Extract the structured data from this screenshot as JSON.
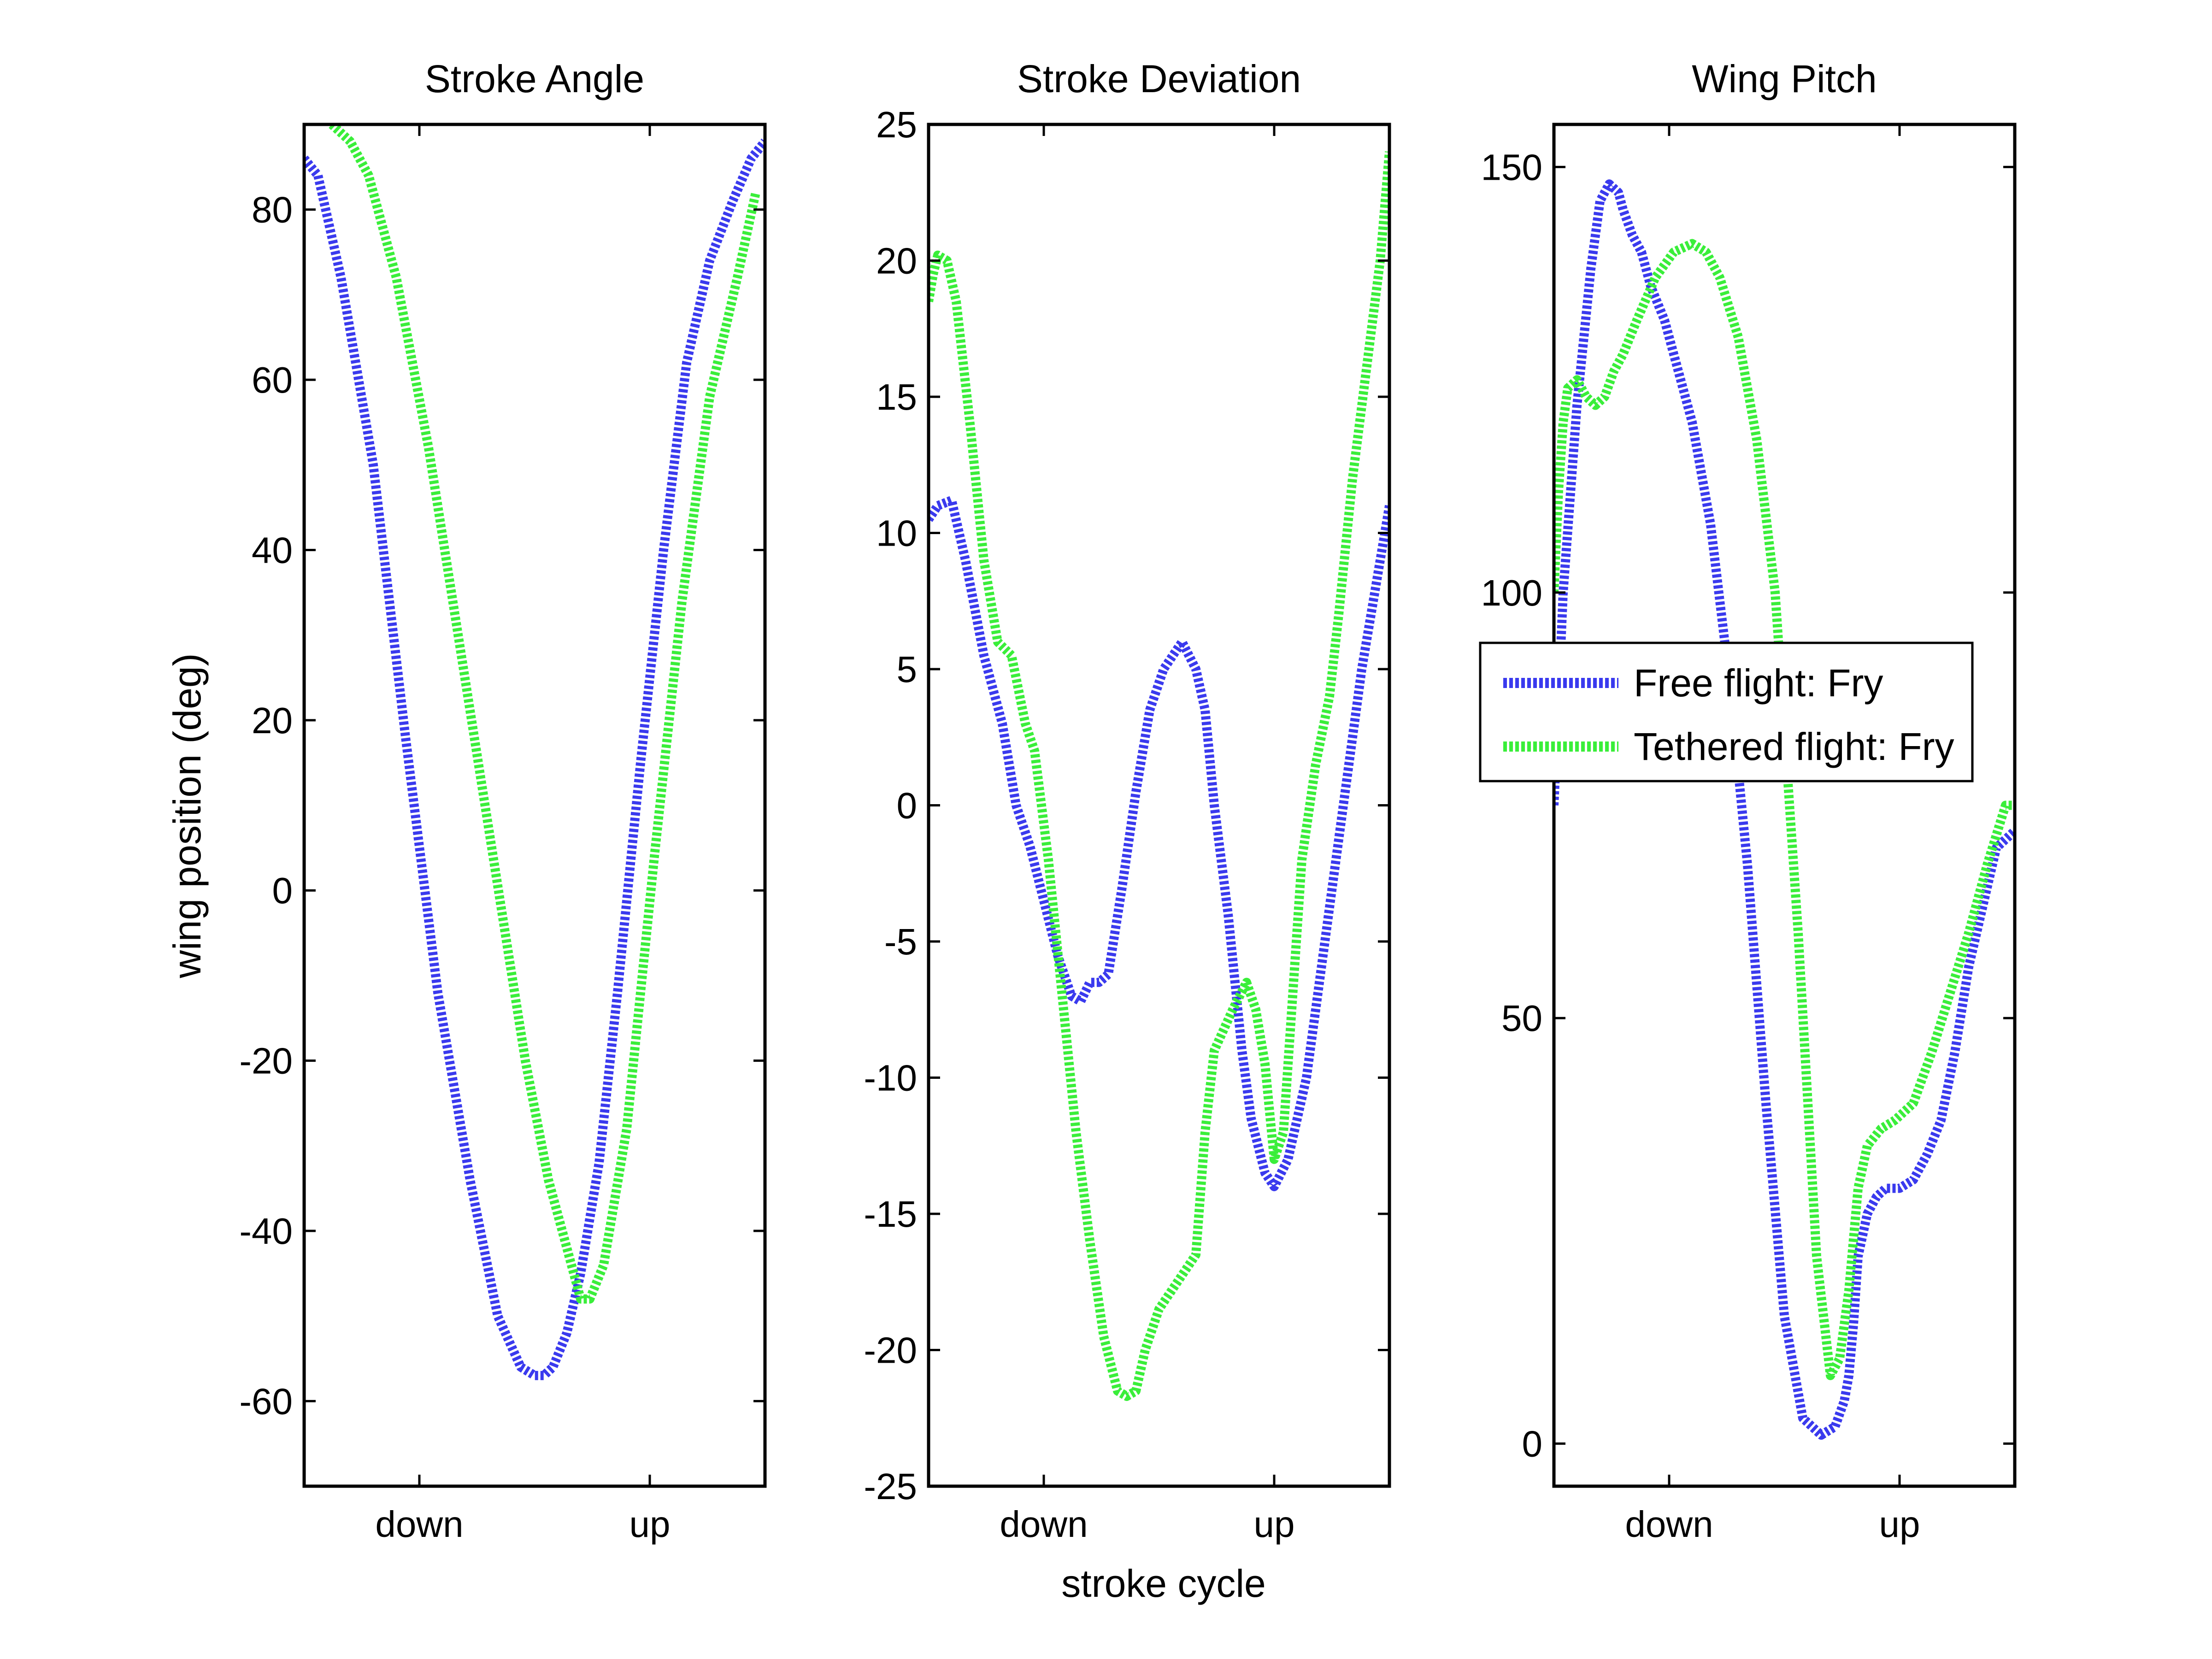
{
  "figure": {
    "ylabel": "wing position (deg)",
    "xlabel": "stroke cycle"
  },
  "legend": {
    "entries": [
      {
        "label": "Free flight: Fry",
        "color": "#3a3aee"
      },
      {
        "label": "Tethered flight: Fry",
        "color": "#3aee3a"
      }
    ],
    "placement": "over right panel, middle"
  },
  "chart_data": [
    {
      "type": "line",
      "title": "Stroke Angle",
      "xlim": [
        0,
        1
      ],
      "ylim": [
        -70,
        90
      ],
      "yticks": [
        "-60",
        "-40",
        "-20",
        "0",
        "20",
        "40",
        "60",
        "80"
      ],
      "ytick_values": [
        -60,
        -40,
        -20,
        0,
        20,
        40,
        60,
        80
      ],
      "xticks": [
        "down",
        "up"
      ],
      "xtick_values": [
        0.25,
        0.75
      ],
      "series": [
        {
          "name": "Free flight: Fry",
          "color": "#3a3aee",
          "x": [
            0,
            0.03,
            0.08,
            0.15,
            0.22,
            0.29,
            0.36,
            0.42,
            0.47,
            0.5,
            0.52,
            0.54,
            0.57,
            0.6,
            0.64,
            0.68,
            0.73,
            0.78,
            0.83,
            0.88,
            0.93,
            0.97,
            1.0
          ],
          "y": [
            86,
            84,
            72,
            50,
            18,
            -12,
            -34,
            -50,
            -56,
            -57,
            -57,
            -56,
            -52,
            -45,
            -32,
            -12,
            15,
            40,
            62,
            74,
            81,
            86,
            88
          ]
        },
        {
          "name": "Tethered flight: Fry",
          "color": "#3aee3a",
          "x": [
            0.06,
            0.1,
            0.14,
            0.2,
            0.27,
            0.34,
            0.41,
            0.48,
            0.53,
            0.58,
            0.6,
            0.62,
            0.65,
            0.7,
            0.76,
            0.82,
            0.88,
            0.94,
            0.98
          ],
          "y": [
            90,
            88,
            84,
            72,
            52,
            28,
            4,
            -20,
            -34,
            -44,
            -48,
            -48,
            -44,
            -28,
            4,
            34,
            58,
            72,
            82
          ]
        }
      ]
    },
    {
      "type": "line",
      "title": "Stroke Deviation",
      "xlim": [
        0,
        1
      ],
      "ylim": [
        -25,
        25
      ],
      "yticks": [
        "-25",
        "-20",
        "-15",
        "-10",
        "-5",
        "0",
        "5",
        "10",
        "15",
        "20",
        "25"
      ],
      "ytick_values": [
        -25,
        -20,
        -15,
        -10,
        -5,
        0,
        5,
        10,
        15,
        20,
        25
      ],
      "xticks": [
        "down",
        "up"
      ],
      "xtick_values": [
        0.25,
        0.75
      ],
      "series": [
        {
          "name": "Free flight: Fry",
          "color": "#3a3aee",
          "x": [
            0,
            0.02,
            0.05,
            0.08,
            0.12,
            0.16,
            0.19,
            0.22,
            0.25,
            0.28,
            0.31,
            0.33,
            0.35,
            0.37,
            0.39,
            0.42,
            0.45,
            0.48,
            0.51,
            0.55,
            0.58,
            0.6,
            0.62,
            0.65,
            0.68,
            0.7,
            0.73,
            0.75,
            0.78,
            0.82,
            0.86,
            0.9,
            0.94,
            0.98,
            1.0
          ],
          "y": [
            10.5,
            11,
            11.2,
            9,
            5.5,
            3,
            0,
            -1.5,
            -3.5,
            -5.5,
            -7,
            -7.2,
            -6.5,
            -6.5,
            -6.2,
            -3,
            0.5,
            3.5,
            5,
            6,
            5,
            3.5,
            0,
            -4,
            -9,
            -11.5,
            -13.5,
            -14,
            -13,
            -10,
            -5,
            0,
            5,
            9,
            11
          ]
        },
        {
          "name": "Tethered flight: Fry",
          "color": "#3aee3a",
          "x": [
            0,
            0.01,
            0.02,
            0.04,
            0.06,
            0.09,
            0.12,
            0.15,
            0.18,
            0.21,
            0.23,
            0.26,
            0.29,
            0.32,
            0.35,
            0.38,
            0.41,
            0.43,
            0.45,
            0.47,
            0.5,
            0.54,
            0.58,
            0.6,
            0.62,
            0.66,
            0.69,
            0.71,
            0.73,
            0.75,
            0.77,
            0.79,
            0.81,
            0.84,
            0.87,
            0.89,
            0.92,
            0.95,
            0.98,
            1.0
          ],
          "y": [
            18.5,
            19.5,
            20.2,
            20,
            18.5,
            14,
            9,
            6,
            5.5,
            3,
            2,
            -2,
            -7,
            -12,
            -16,
            -19.5,
            -21.5,
            -21.7,
            -21.5,
            -20,
            -18.5,
            -17.5,
            -16.5,
            -12,
            -9,
            -7.5,
            -6.5,
            -7.5,
            -9.5,
            -13,
            -12,
            -7,
            -2,
            1.5,
            4,
            7,
            12,
            16,
            20,
            24
          ]
        }
      ]
    },
    {
      "type": "line",
      "title": "Wing Pitch",
      "xlim": [
        0,
        1
      ],
      "ylim": [
        -5,
        155
      ],
      "yticks": [
        "0",
        "50",
        "100",
        "150"
      ],
      "ytick_values": [
        0,
        50,
        100,
        150
      ],
      "xticks": [
        "down",
        "up"
      ],
      "xtick_values": [
        0.25,
        0.75
      ],
      "series": [
        {
          "name": "Free flight: Fry",
          "color": "#3a3aee",
          "x": [
            0,
            0.02,
            0.05,
            0.08,
            0.1,
            0.12,
            0.14,
            0.15,
            0.17,
            0.19,
            0.21,
            0.24,
            0.27,
            0.3,
            0.34,
            0.38,
            0.42,
            0.46,
            0.5,
            0.54,
            0.58,
            0.61,
            0.63,
            0.64,
            0.65,
            0.66,
            0.68,
            0.7,
            0.72,
            0.75,
            0.78,
            0.81,
            0.84,
            0.87,
            0.9,
            0.93,
            0.96,
            1.0
          ],
          "y": [
            75,
            100,
            122,
            138,
            146,
            148,
            147,
            145,
            142,
            140,
            136,
            132,
            126,
            120,
            108,
            90,
            68,
            40,
            15,
            3,
            1,
            2,
            5,
            8,
            14,
            22,
            27,
            29,
            30,
            30,
            31,
            34,
            38,
            46,
            56,
            63,
            70,
            72
          ]
        },
        {
          "name": "Tethered flight: Fry",
          "color": "#3aee3a",
          "x": [
            0,
            0.01,
            0.02,
            0.03,
            0.05,
            0.07,
            0.09,
            0.11,
            0.13,
            0.15,
            0.18,
            0.22,
            0.26,
            0.3,
            0.33,
            0.36,
            0.4,
            0.44,
            0.48,
            0.53,
            0.57,
            0.6,
            0.62,
            0.64,
            0.66,
            0.68,
            0.71,
            0.74,
            0.78,
            0.82,
            0.86,
            0.9,
            0.94,
            0.98,
            1.0
          ],
          "y": [
            100,
            112,
            120,
            124,
            125,
            123,
            122,
            123,
            126,
            128,
            132,
            137,
            140,
            141,
            140,
            137,
            130,
            118,
            100,
            60,
            22,
            8,
            10,
            18,
            30,
            35,
            37,
            38,
            40,
            46,
            53,
            60,
            68,
            75,
            75
          ]
        }
      ]
    }
  ]
}
